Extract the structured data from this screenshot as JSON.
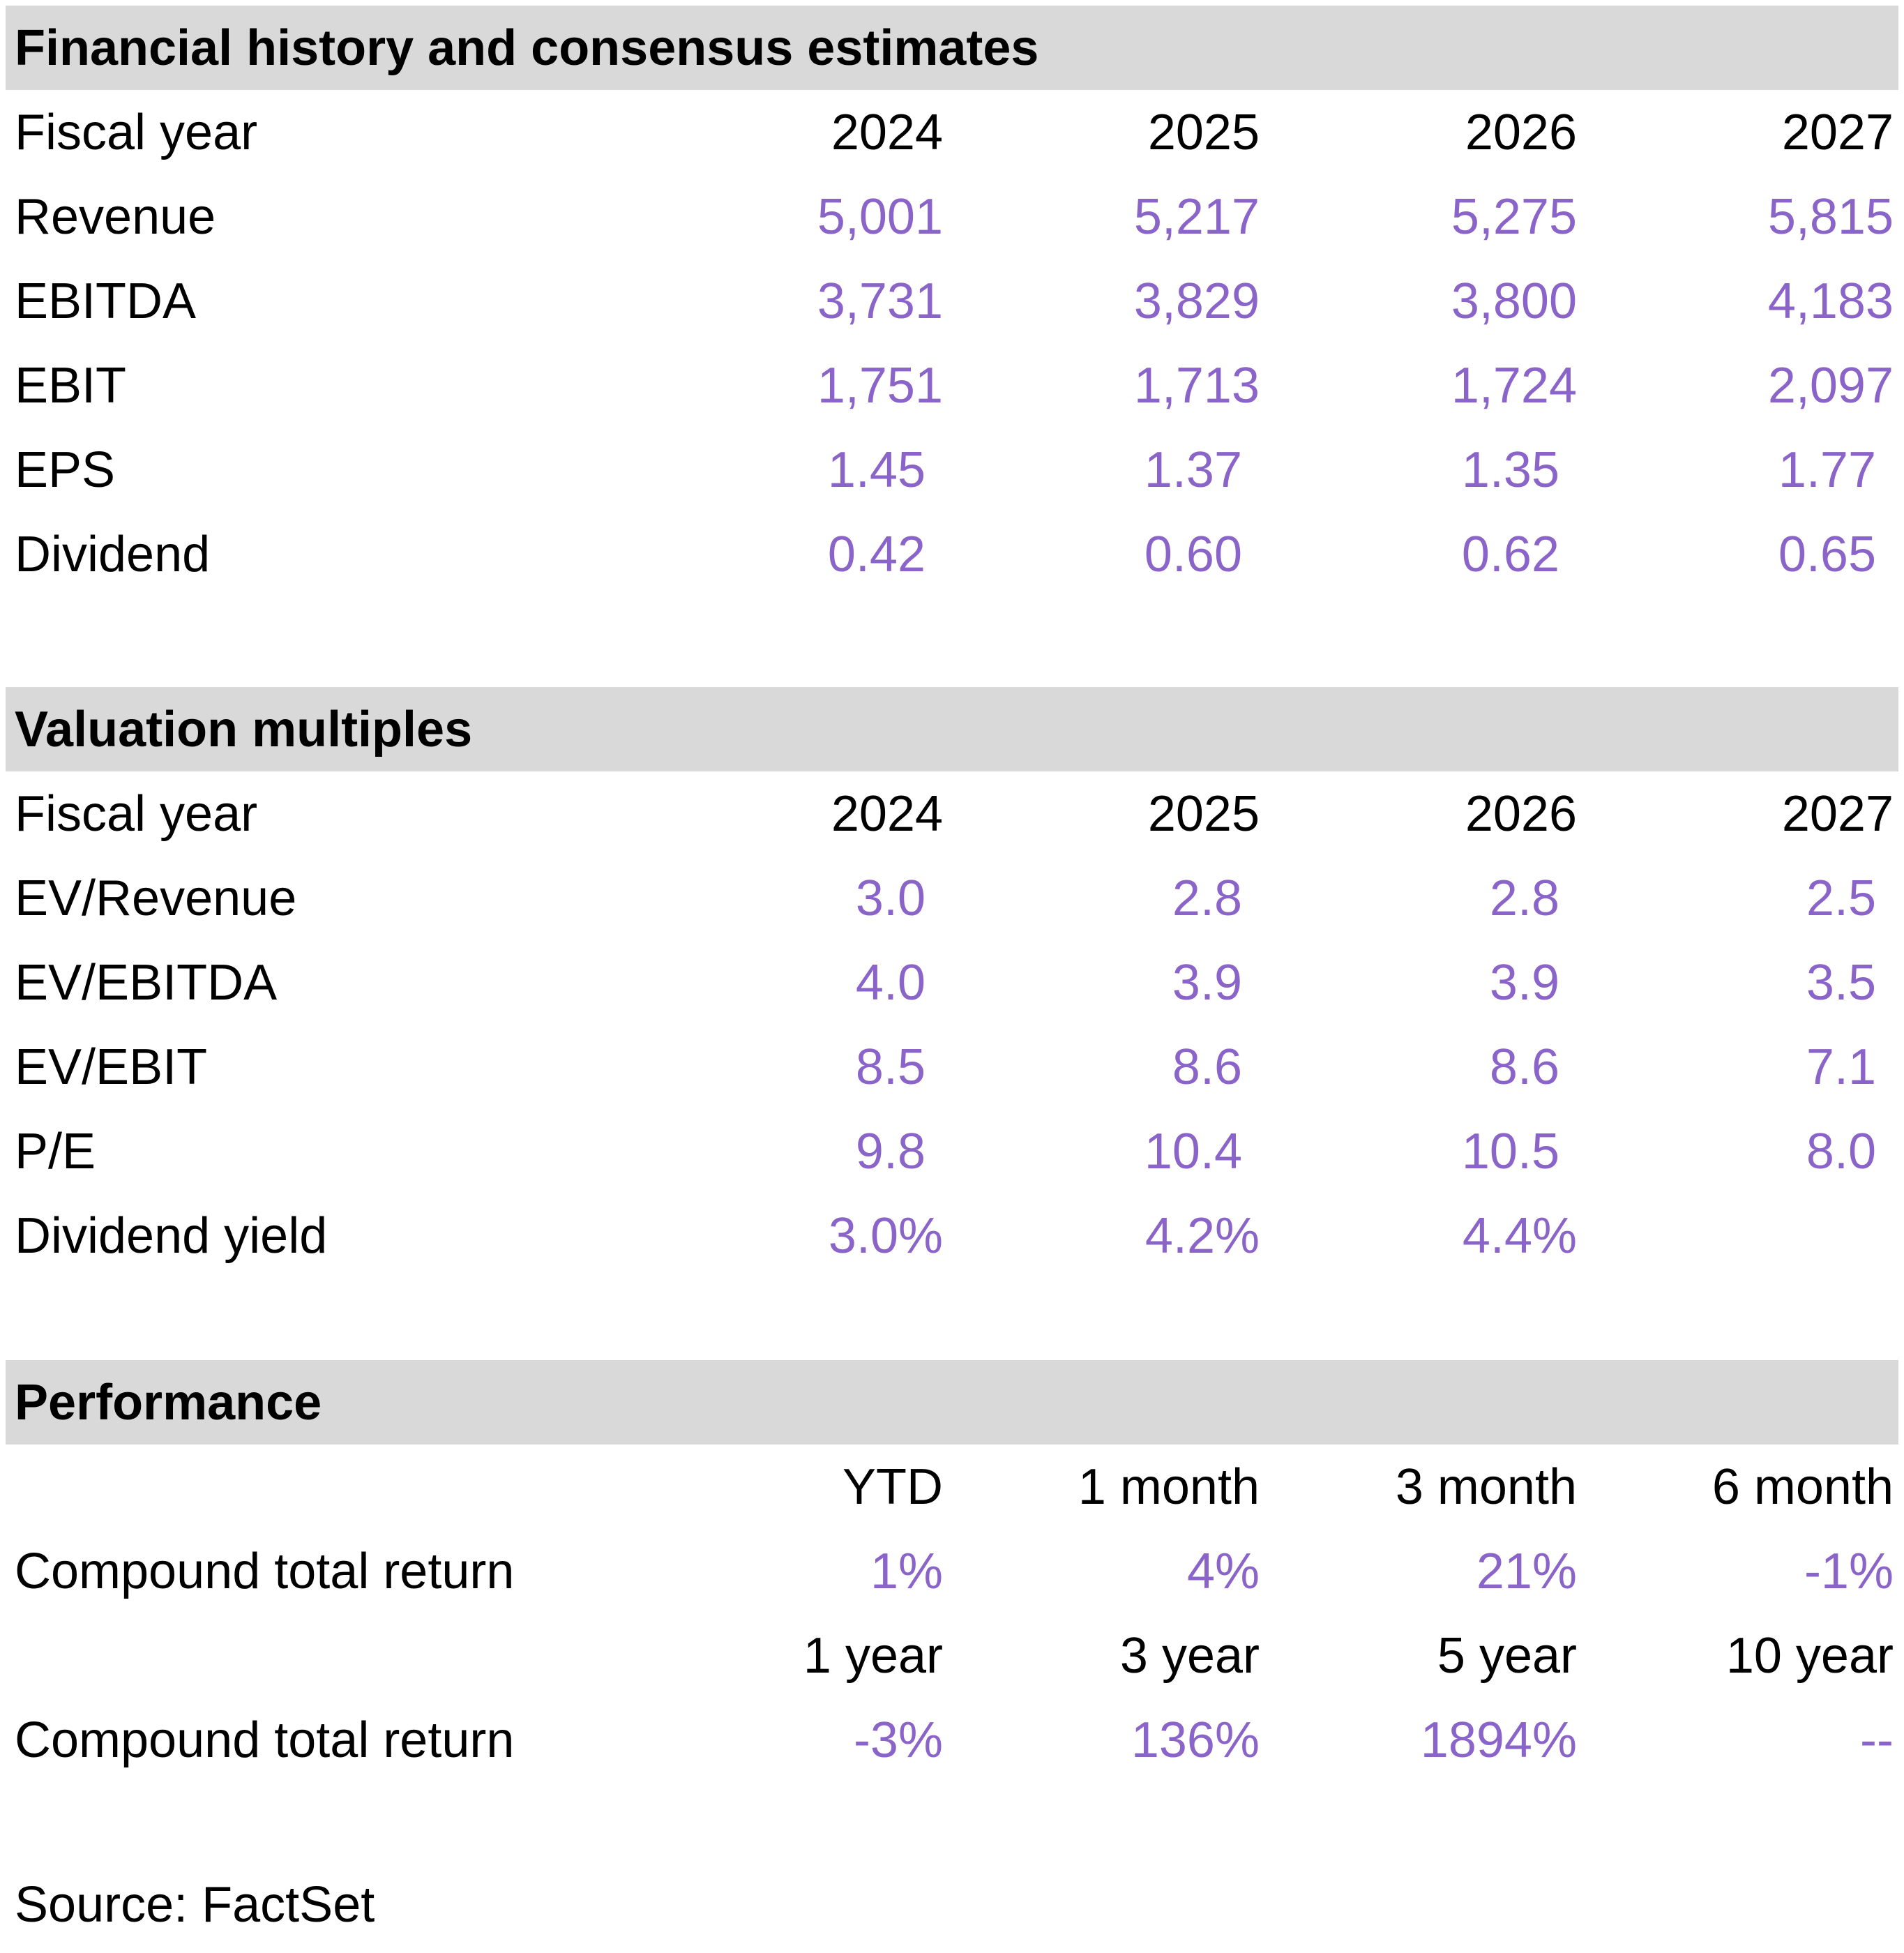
{
  "sections": [
    {
      "title": "Financial history and consensus estimates",
      "header": {
        "label": "Fiscal year",
        "columns": [
          "2024",
          "2025",
          "2026",
          "2027"
        ]
      },
      "rows": [
        {
          "label": "Revenue",
          "values": [
            "5,001",
            "5,217",
            "5,275",
            "5,815"
          ]
        },
        {
          "label": "EBITDA",
          "values": [
            "3,731",
            "3,829",
            "3,800",
            "4,183"
          ]
        },
        {
          "label": "EBIT",
          "values": [
            "1,751",
            "1,713",
            "1,724",
            "2,097"
          ]
        },
        {
          "label": "EPS",
          "values": [
            "1.45",
            "1.37",
            "1.35",
            "1.77"
          ]
        },
        {
          "label": "Dividend",
          "values": [
            "0.42",
            "0.60",
            "0.62",
            "0.65"
          ]
        }
      ]
    },
    {
      "title": "Valuation multiples",
      "header": {
        "label": "Fiscal year",
        "columns": [
          "2024",
          "2025",
          "2026",
          "2027"
        ]
      },
      "rows": [
        {
          "label": "EV/Revenue",
          "values": [
            "3.0",
            "2.8",
            "2.8",
            "2.5"
          ]
        },
        {
          "label": "EV/EBITDA",
          "values": [
            "4.0",
            "3.9",
            "3.9",
            "3.5"
          ]
        },
        {
          "label": "EV/EBIT",
          "values": [
            "8.5",
            "8.6",
            "8.6",
            "7.1"
          ]
        },
        {
          "label": "P/E",
          "values": [
            "9.8",
            "10.4",
            "10.5",
            "8.0"
          ]
        },
        {
          "label": "Dividend yield",
          "values": [
            "3.0%",
            "4.2%",
            "4.4%",
            ""
          ]
        }
      ]
    },
    {
      "title": "Performance",
      "blocks": [
        {
          "columns": [
            "YTD",
            "1 month",
            "3 month",
            "6 month"
          ],
          "label": "Compound total return",
          "values": [
            "1%",
            "4%",
            "21%",
            "-1%"
          ]
        },
        {
          "columns": [
            "1 year",
            "3 year",
            "5 year",
            "10 year"
          ],
          "label": "Compound total return",
          "values": [
            "-3%",
            "136%",
            "1894%",
            "--"
          ]
        }
      ]
    }
  ],
  "source": "Source: FactSet",
  "colors": {
    "header_bg": "#d9d9d9",
    "value_text": "#8a64c8",
    "label_text": "#000000"
  }
}
